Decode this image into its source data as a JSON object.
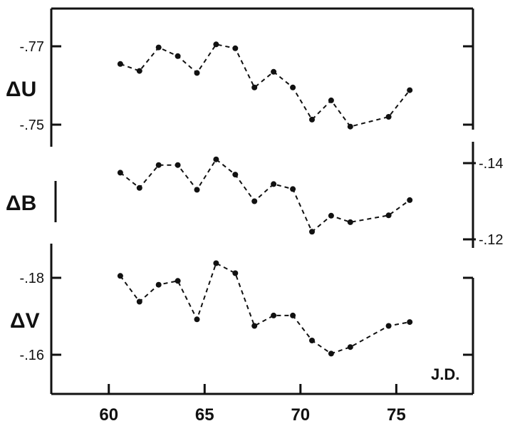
{
  "chart_data": {
    "type": "line",
    "title": "",
    "xlabel": "J.D.",
    "x_ticks": [
      "60",
      "65",
      "70",
      "75"
    ],
    "xlim": [
      57,
      79
    ],
    "grid": false,
    "colors": {
      "line": "#111111",
      "marker": "#111111",
      "axis": "#111111"
    },
    "series": [
      {
        "name": "ΔU",
        "ylim": [
          -0.777,
          -0.743
        ],
        "inverted": true,
        "y_ticks": [
          "-.77",
          "-.75"
        ],
        "tick_side": "left",
        "points": [
          [
            60.6,
            -0.7655
          ],
          [
            61.6,
            -0.7637
          ],
          [
            62.6,
            -0.7697
          ],
          [
            63.6,
            -0.7675
          ],
          [
            64.6,
            -0.7632
          ],
          [
            65.6,
            -0.7705
          ],
          [
            66.6,
            -0.7695
          ],
          [
            67.6,
            -0.7595
          ],
          [
            68.6,
            -0.7635
          ],
          [
            69.6,
            -0.7595
          ],
          [
            70.6,
            -0.7513
          ],
          [
            71.6,
            -0.7562
          ],
          [
            72.6,
            -0.7495
          ],
          [
            74.6,
            -0.752
          ],
          [
            75.7,
            -0.7588
          ]
        ]
      },
      {
        "name": "ΔB",
        "ylim": [
          -0.146,
          -0.119
        ],
        "inverted": true,
        "y_ticks": [
          "-.14",
          "-.12"
        ],
        "tick_side": "right",
        "points": [
          [
            60.6,
            -0.1375
          ],
          [
            61.6,
            -0.1335
          ],
          [
            62.6,
            -0.1395
          ],
          [
            63.6,
            -0.1395
          ],
          [
            64.6,
            -0.133
          ],
          [
            65.6,
            -0.141
          ],
          [
            66.6,
            -0.137
          ],
          [
            67.6,
            -0.13
          ],
          [
            68.6,
            -0.1345
          ],
          [
            69.6,
            -0.1332
          ],
          [
            70.6,
            -0.122
          ],
          [
            71.6,
            -0.1262
          ],
          [
            72.6,
            -0.1245
          ],
          [
            74.6,
            -0.1263
          ],
          [
            75.7,
            -0.1303
          ]
        ]
      },
      {
        "name": "ΔV",
        "ylim": [
          -0.1875,
          -0.1555
        ],
        "inverted": true,
        "y_ticks": [
          "-.18",
          "-.16"
        ],
        "tick_side": "left",
        "points": [
          [
            60.6,
            -0.1805
          ],
          [
            61.6,
            -0.1738
          ],
          [
            62.6,
            -0.1782
          ],
          [
            63.6,
            -0.1792
          ],
          [
            64.6,
            -0.1692
          ],
          [
            65.6,
            -0.1838
          ],
          [
            66.6,
            -0.1812
          ],
          [
            67.6,
            -0.1675
          ],
          [
            68.6,
            -0.1702
          ],
          [
            69.6,
            -0.1702
          ],
          [
            70.6,
            -0.1637
          ],
          [
            71.6,
            -0.1603
          ],
          [
            72.6,
            -0.162
          ],
          [
            74.6,
            -0.1675
          ],
          [
            75.7,
            -0.1685
          ]
        ]
      }
    ]
  }
}
